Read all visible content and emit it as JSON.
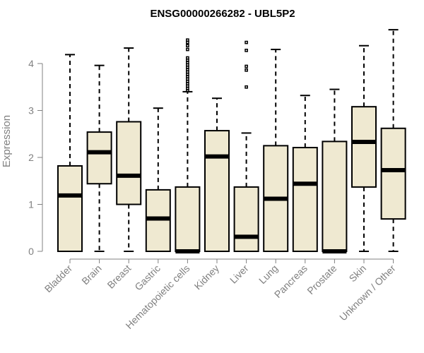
{
  "chart_data": {
    "type": "box",
    "title": "ENSG00000266282 - UBL5P2",
    "ylabel": "Expression",
    "xlabel": "",
    "ylim": [
      0,
      4.5
    ],
    "yticks": [
      0,
      1,
      2,
      3,
      4
    ],
    "box_fill": "#efe9d1",
    "categories": [
      "Bladder",
      "Brain",
      "Breast",
      "Gastric",
      "Hematopoietic cells",
      "Kidney",
      "Liver",
      "Lung",
      "Pancreas",
      "Prostate",
      "Skin",
      "Unknown / Other"
    ],
    "boxes": [
      {
        "q1": 0.0,
        "median": 1.19,
        "q3": 1.82,
        "whisker_low": 0.0,
        "whisker_high": 4.19,
        "outliers": []
      },
      {
        "q1": 1.44,
        "median": 2.11,
        "q3": 2.54,
        "whisker_low": 0.0,
        "whisker_high": 3.96,
        "outliers": []
      },
      {
        "q1": 1.0,
        "median": 1.61,
        "q3": 2.76,
        "whisker_low": 0.0,
        "whisker_high": 4.33,
        "outliers": []
      },
      {
        "q1": 0.0,
        "median": 0.7,
        "q3": 1.31,
        "whisker_low": 0.0,
        "whisker_high": 3.05,
        "outliers": []
      },
      {
        "q1": 0.0,
        "median": 0.0,
        "q3": 1.37,
        "whisker_low": 0.0,
        "whisker_high": 3.4,
        "outliers": [
          3.42,
          3.47,
          3.52,
          3.57,
          3.62,
          3.67,
          3.72,
          3.77,
          3.82,
          3.87,
          3.92,
          3.97,
          4.02,
          4.07,
          4.12,
          4.3,
          4.38,
          4.45,
          4.5
        ]
      },
      {
        "q1": 0.0,
        "median": 2.02,
        "q3": 2.57,
        "whisker_low": 0.0,
        "whisker_high": 3.26,
        "outliers": []
      },
      {
        "q1": 0.0,
        "median": 0.31,
        "q3": 1.37,
        "whisker_low": 0.0,
        "whisker_high": 2.52,
        "outliers": [
          3.5,
          3.86,
          3.94,
          4.28,
          4.45
        ]
      },
      {
        "q1": 0.0,
        "median": 1.12,
        "q3": 2.25,
        "whisker_low": 0.0,
        "whisker_high": 4.3,
        "outliers": []
      },
      {
        "q1": 0.0,
        "median": 1.44,
        "q3": 2.21,
        "whisker_low": 0.0,
        "whisker_high": 3.32,
        "outliers": []
      },
      {
        "q1": 0.0,
        "median": 0.0,
        "q3": 2.34,
        "whisker_low": 0.0,
        "whisker_high": 3.45,
        "outliers": []
      },
      {
        "q1": 1.37,
        "median": 2.33,
        "q3": 3.08,
        "whisker_low": 0.0,
        "whisker_high": 4.38,
        "outliers": []
      },
      {
        "q1": 0.69,
        "median": 1.73,
        "q3": 2.62,
        "whisker_low": 0.0,
        "whisker_high": 4.72,
        "outliers": []
      }
    ]
  }
}
